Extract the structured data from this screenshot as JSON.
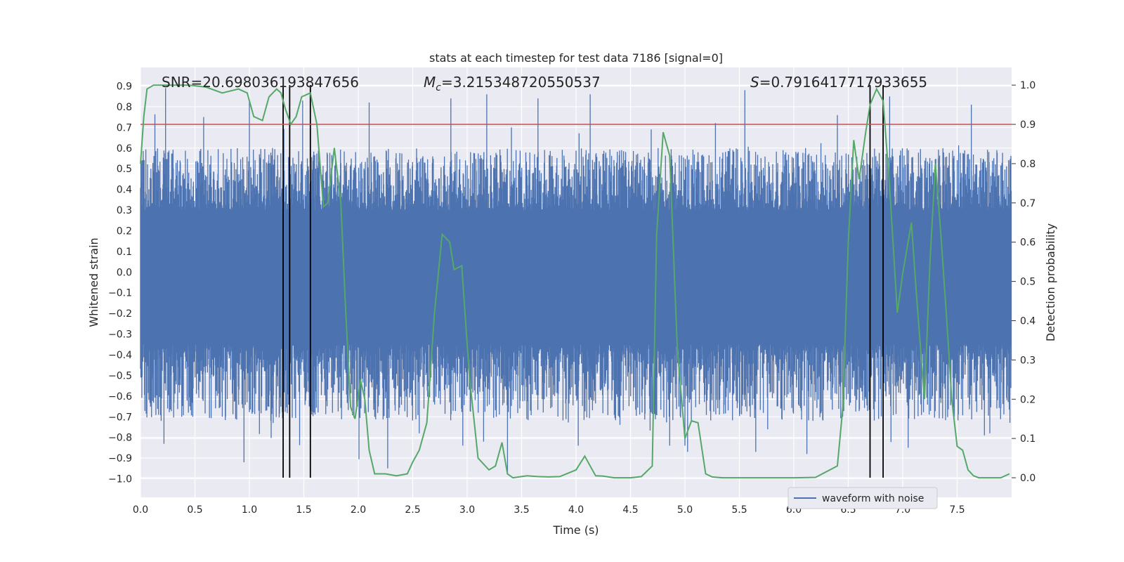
{
  "chart_data": {
    "type": "line",
    "title": "stats at each timestep for test data 7186 [signal=0]",
    "xlabel": "Time (s)",
    "ylabel": "Whitened strain",
    "ylabel_right": "Detection probability",
    "xlim": [
      0.0,
      8.0
    ],
    "ylim": [
      -1.09,
      0.99
    ],
    "ylim_right": [
      -0.05,
      1.045
    ],
    "x_ticks": [
      "0.0",
      "0.5",
      "1.0",
      "1.5",
      "2.0",
      "2.5",
      "3.0",
      "3.5",
      "4.0",
      "4.5",
      "5.0",
      "5.5",
      "6.0",
      "6.5",
      "7.0",
      "7.5"
    ],
    "y_ticks": [
      "0.9",
      "0.8",
      "0.7",
      "0.6",
      "0.5",
      "0.4",
      "0.3",
      "0.2",
      "0.1",
      "0.0",
      "-0.1",
      "-0.2",
      "-0.3",
      "-0.4",
      "-0.5",
      "-0.6",
      "-0.7",
      "-0.8",
      "-0.9",
      "-1.0"
    ],
    "y_ticks_right": [
      "1.0",
      "0.9",
      "0.8",
      "0.7",
      "0.6",
      "0.5",
      "0.4",
      "0.3",
      "0.2",
      "0.1",
      "0.0"
    ],
    "grid": true,
    "annotations": {
      "snr": "SNR=20.698036193847656",
      "mc_symbol": "M",
      "mc_sub": "c",
      "mc_value": "=3.215348720550537",
      "s_symbol": "S",
      "s_value": "=0.7916417717933655"
    },
    "threshold": {
      "value": 0.9,
      "axis": "right",
      "color": "#c44e52"
    },
    "vertical_lines": [
      1.31,
      1.37,
      1.56,
      6.7,
      6.82
    ],
    "vertical_line_color": "#000000",
    "series": [
      {
        "name": "waveform with noise",
        "axis": "left",
        "color": "#4c72b0",
        "description_of_envelope": {
          "core_amplitude": 0.3,
          "typical_peak": 0.55,
          "max_peak": 0.9,
          "min_peak": -1.0
        },
        "prominent_spikes": [
          {
            "x": 0.23,
            "y": 0.89
          },
          {
            "x": 0.19,
            "y": -0.72
          },
          {
            "x": 0.58,
            "y": 0.75
          },
          {
            "x": 0.95,
            "y": -0.92
          },
          {
            "x": 1.0,
            "y": 0.83
          },
          {
            "x": 1.17,
            "y": -0.65
          },
          {
            "x": 1.49,
            "y": 0.83
          },
          {
            "x": 1.55,
            "y": -0.65
          },
          {
            "x": 2.1,
            "y": 0.82
          },
          {
            "x": 2.27,
            "y": -0.95
          },
          {
            "x": 2.56,
            "y": -0.78
          },
          {
            "x": 2.85,
            "y": 0.84
          },
          {
            "x": 2.96,
            "y": -0.84
          },
          {
            "x": 3.18,
            "y": 0.86
          },
          {
            "x": 3.37,
            "y": -0.98
          },
          {
            "x": 3.65,
            "y": 0.84
          },
          {
            "x": 4.02,
            "y": -0.84
          },
          {
            "x": 4.13,
            "y": 0.86
          },
          {
            "x": 4.69,
            "y": 0.69
          },
          {
            "x": 4.86,
            "y": -0.84
          },
          {
            "x": 5.0,
            "y": -0.84
          },
          {
            "x": 5.55,
            "y": 0.88
          },
          {
            "x": 5.65,
            "y": -0.87
          },
          {
            "x": 6.12,
            "y": -0.88
          },
          {
            "x": 6.4,
            "y": 0.76
          },
          {
            "x": 6.88,
            "y": 0.85
          },
          {
            "x": 7.05,
            "y": -0.85
          },
          {
            "x": 7.63,
            "y": 0.81
          },
          {
            "x": 7.75,
            "y": -0.79
          },
          {
            "x": 7.8,
            "y": -0.78
          }
        ]
      },
      {
        "axis": "right",
        "color": "#55a868",
        "x": [
          0.0,
          0.03,
          0.06,
          0.12,
          0.18,
          0.3,
          0.45,
          0.6,
          0.75,
          0.9,
          0.98,
          1.04,
          1.12,
          1.18,
          1.25,
          1.29,
          1.33,
          1.38,
          1.43,
          1.48,
          1.56,
          1.62,
          1.68,
          1.72,
          1.78,
          1.84,
          1.88,
          1.93,
          1.97,
          2.02,
          2.06,
          2.1,
          2.15,
          2.25,
          2.35,
          2.45,
          2.5,
          2.56,
          2.63,
          2.7,
          2.77,
          2.84,
          2.88,
          2.95,
          3.02,
          3.1,
          3.2,
          3.26,
          3.32,
          3.37,
          3.42,
          3.55,
          3.65,
          3.75,
          3.85,
          4.0,
          4.08,
          4.13,
          4.18,
          4.25,
          4.35,
          4.5,
          4.6,
          4.7,
          4.74,
          4.8,
          4.86,
          4.93,
          5.0,
          5.06,
          5.12,
          5.19,
          5.25,
          5.35,
          5.5,
          5.7,
          6.0,
          6.2,
          6.4,
          6.45,
          6.5,
          6.55,
          6.6,
          6.66,
          6.7,
          6.76,
          6.82,
          6.88,
          6.95,
          7.0,
          7.08,
          7.13,
          7.2,
          7.25,
          7.3,
          7.35,
          7.4,
          7.45,
          7.5,
          7.55,
          7.6,
          7.65,
          7.7,
          7.8,
          7.9,
          7.98
        ],
        "values": [
          0.8,
          0.92,
          0.99,
          1.0,
          1.0,
          1.0,
          1.0,
          0.995,
          0.98,
          0.99,
          0.98,
          0.92,
          0.91,
          0.97,
          0.99,
          0.98,
          0.94,
          0.9,
          0.92,
          0.97,
          0.98,
          0.9,
          0.69,
          0.7,
          0.84,
          0.7,
          0.45,
          0.18,
          0.15,
          0.25,
          0.2,
          0.07,
          0.01,
          0.01,
          0.005,
          0.01,
          0.04,
          0.07,
          0.14,
          0.42,
          0.62,
          0.6,
          0.53,
          0.54,
          0.26,
          0.05,
          0.02,
          0.03,
          0.09,
          0.01,
          0.0,
          0.005,
          0.003,
          0.002,
          0.003,
          0.02,
          0.055,
          0.03,
          0.005,
          0.004,
          0.0,
          0.0,
          0.003,
          0.03,
          0.62,
          0.88,
          0.82,
          0.33,
          0.1,
          0.145,
          0.14,
          0.01,
          0.002,
          0.0,
          0.0,
          0.0,
          0.0,
          0.001,
          0.03,
          0.18,
          0.6,
          0.86,
          0.76,
          0.88,
          0.95,
          0.99,
          0.96,
          0.74,
          0.42,
          0.52,
          0.65,
          0.45,
          0.2,
          0.55,
          0.8,
          0.62,
          0.42,
          0.2,
          0.08,
          0.07,
          0.02,
          0.005,
          0.0,
          0.0,
          0.0,
          0.01
        ]
      }
    ],
    "legend": {
      "placement": "lower-right",
      "label": "waveform with noise"
    }
  }
}
